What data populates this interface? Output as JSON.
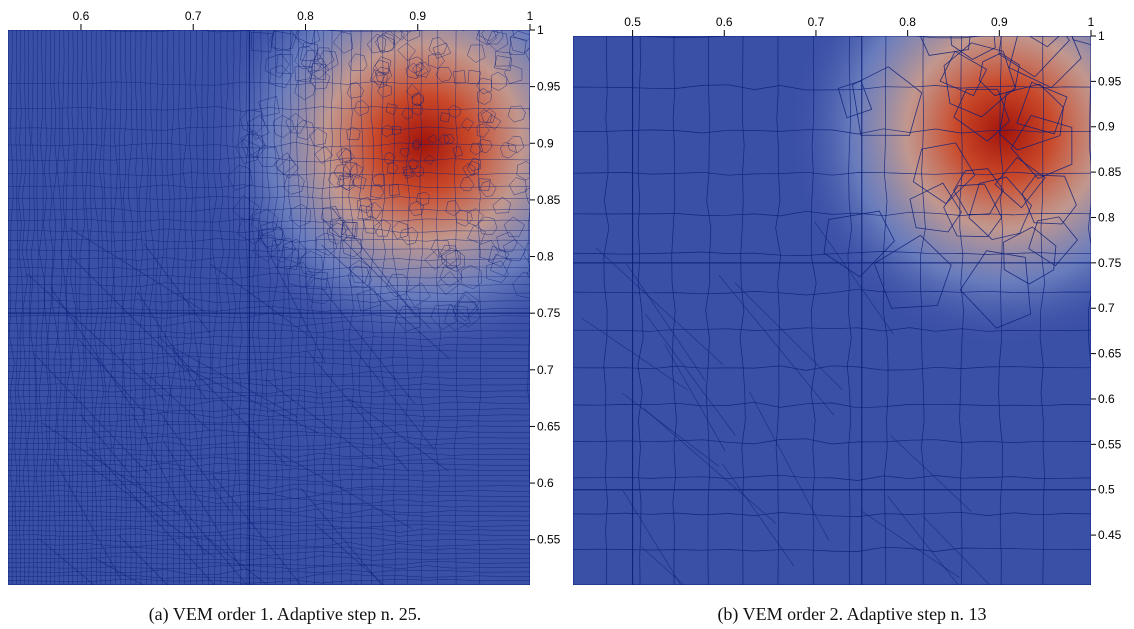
{
  "figure": {
    "panels": [
      {
        "caption": "(a) VEM order 1. Adaptive step n. 25.",
        "x_ticks": [
          "0.6",
          "0.7",
          "0.8",
          "0.9",
          "1"
        ],
        "y_ticks": [
          "1",
          "0.95",
          "0.9",
          "0.85",
          "0.8",
          "0.75",
          "0.7",
          "0.65",
          "0.6",
          "0.55"
        ],
        "x_range": [
          0.535,
          1.0
        ],
        "y_range": [
          0.51,
          1.0
        ],
        "peak": {
          "x": 0.905,
          "y": 0.9
        },
        "hot_color": "#a3140a",
        "base_color": "#3a4fa6",
        "mesh_color": "#0a1f7a"
      },
      {
        "caption": "(b) VEM order 2. Adaptive step n. 13",
        "x_ticks": [
          "0.5",
          "0.6",
          "0.7",
          "0.8",
          "0.9",
          "1"
        ],
        "y_ticks": [
          "1",
          "0.95",
          "0.9",
          "0.85",
          "0.8",
          "0.75",
          "0.7",
          "0.65",
          "0.6",
          "0.55",
          "0.5",
          "0.45"
        ],
        "x_range": [
          0.435,
          1.0
        ],
        "y_range": [
          0.395,
          1.0
        ],
        "peak": {
          "x": 0.905,
          "y": 0.895
        },
        "hot_color": "#a3140a",
        "base_color": "#3a4fa6",
        "mesh_color": "#0a1f7a"
      }
    ]
  }
}
